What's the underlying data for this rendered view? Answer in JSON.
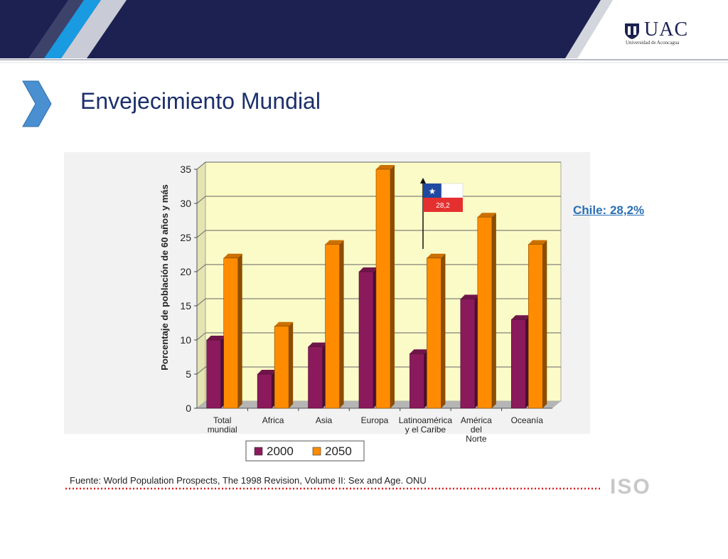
{
  "header": {
    "logo_text": "UAC",
    "logo_subtitle": "Universidad de Aconcagua"
  },
  "slide": {
    "title": "Envejecimiento Mundial"
  },
  "colors": {
    "navy": "#1c2151",
    "accent_blue": "#1a9ae0",
    "series_2000": "#8b1a5c",
    "series_2050": "#ff8c00",
    "plot_bg": "#fbfbc8"
  },
  "annotation": {
    "flag_value": "28,2",
    "chile_label": "Chile: 28,2%"
  },
  "source": {
    "text": "Fuente: World Population Prospects, The 1998 Revision, Volume II: Sex and Age. ONU",
    "logo": "ISO"
  },
  "chart_data": {
    "type": "bar",
    "ylabel": "Porcentaje de población de 60 años y más",
    "xlabel": "",
    "ylim": [
      0,
      35
    ],
    "yticks": [
      0,
      5,
      10,
      15,
      20,
      25,
      30,
      35
    ],
    "grid": true,
    "legend_position": "bottom",
    "categories": [
      [
        "Total",
        "mundial"
      ],
      [
        "Africa"
      ],
      [
        "Asia"
      ],
      [
        "Europa"
      ],
      [
        "Latinoamérica",
        "y el Caribe"
      ],
      [
        "América",
        "del",
        "Norte"
      ],
      [
        "Oceanía"
      ]
    ],
    "series": [
      {
        "name": "2000",
        "values": [
          10,
          5,
          9,
          20,
          8,
          16,
          13
        ]
      },
      {
        "name": "2050",
        "values": [
          22,
          12,
          24,
          35,
          22,
          28,
          24
        ]
      }
    ]
  }
}
